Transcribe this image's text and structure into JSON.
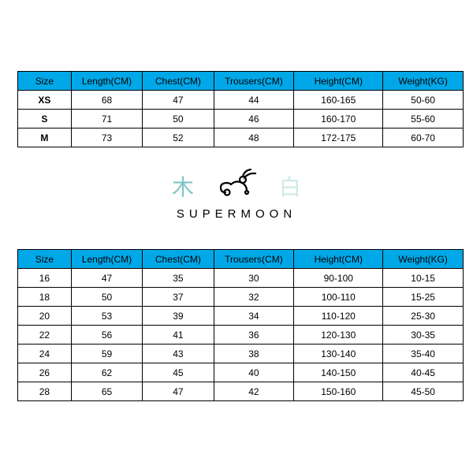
{
  "colors": {
    "header_bg": "#00a8e8",
    "header_text": "#000000",
    "cell_text": "#000000",
    "border": "#000000",
    "cjk_left": "#7fc6c6",
    "cjk_right": "#cfe8e8",
    "logo_stroke": "#000000"
  },
  "typography": {
    "body_fontsize": 12,
    "brand_letterspacing": 6,
    "brand_fontsize": 15,
    "cjk_fontsize": 28
  },
  "table_top": {
    "type": "table",
    "columns": [
      "Size",
      "Length(CM)",
      "Chest(CM)",
      "Trousers(CM)",
      "Height(CM)",
      "Weight(KG)"
    ],
    "col_widths_pct": [
      12,
      16,
      16,
      18,
      20,
      18
    ],
    "rows": [
      [
        "XS",
        "68",
        "47",
        "44",
        "160-165",
        "50-60"
      ],
      [
        "S",
        "71",
        "50",
        "46",
        "160-170",
        "55-60"
      ],
      [
        "M",
        "73",
        "52",
        "48",
        "172-175",
        "60-70"
      ]
    ],
    "size_col_bold": true
  },
  "table_bottom": {
    "type": "table",
    "columns": [
      "Size",
      "Length(CM)",
      "Chest(CM)",
      "Trousers(CM)",
      "Height(CM)",
      "Weight(KG)"
    ],
    "col_widths_pct": [
      12,
      16,
      16,
      18,
      20,
      18
    ],
    "rows": [
      [
        "16",
        "47",
        "35",
        "30",
        "90-100",
        "10-15"
      ],
      [
        "18",
        "50",
        "37",
        "32",
        "100-110",
        "15-25"
      ],
      [
        "20",
        "53",
        "39",
        "34",
        "110-120",
        "25-30"
      ],
      [
        "22",
        "56",
        "41",
        "36",
        "120-130",
        "30-35"
      ],
      [
        "24",
        "59",
        "43",
        "38",
        "130-140",
        "35-40"
      ],
      [
        "26",
        "62",
        "45",
        "40",
        "140-150",
        "40-45"
      ],
      [
        "28",
        "65",
        "47",
        "42",
        "150-160",
        "45-50"
      ]
    ],
    "size_col_bold": false
  },
  "logo": {
    "cjk_left": "木",
    "cjk_right": "白",
    "brand": "SUPERMOON"
  }
}
